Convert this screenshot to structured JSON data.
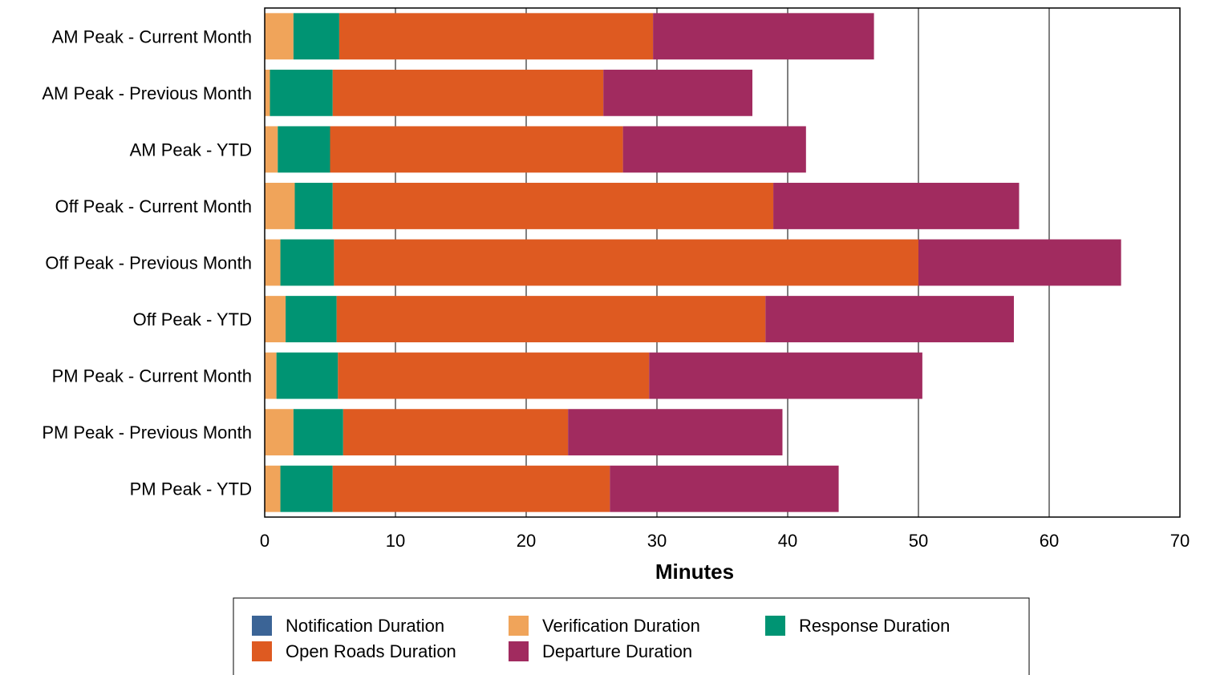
{
  "chart_data": {
    "type": "bar",
    "orientation": "horizontal",
    "stacked": true,
    "title": "",
    "xlabel": "Minutes",
    "ylabel": "",
    "xlim": [
      0,
      70
    ],
    "xticks": [
      0,
      10,
      20,
      30,
      40,
      50,
      60,
      70
    ],
    "grid": "vertical",
    "legend_position": "bottom",
    "categories": [
      "AM Peak - Current Month",
      "AM Peak - Previous Month",
      "AM Peak - YTD",
      "Off Peak - Current Month",
      "Off Peak - Previous Month",
      "Off Peak - YTD",
      "PM Peak - Current Month",
      "PM Peak - Previous Month",
      "PM Peak - YTD"
    ],
    "series": [
      {
        "name": "Notification Duration",
        "color": "#3b6496",
        "values": [
          0,
          0,
          0,
          0,
          0,
          0,
          0,
          0,
          0
        ]
      },
      {
        "name": "Verification Duration",
        "color": "#f0a45a",
        "values": [
          2.2,
          0.4,
          1.0,
          2.3,
          1.2,
          1.6,
          0.9,
          2.2,
          1.2
        ]
      },
      {
        "name": "Response Duration",
        "color": "#009473",
        "values": [
          3.5,
          4.8,
          4.0,
          2.9,
          4.1,
          3.9,
          4.7,
          3.8,
          4.0
        ]
      },
      {
        "name": "Open Roads Duration",
        "color": "#de5a21",
        "values": [
          24.0,
          20.7,
          22.4,
          33.7,
          44.7,
          32.8,
          23.8,
          17.2,
          21.2
        ]
      },
      {
        "name": "Departure Duration",
        "color": "#a12b5f",
        "values": [
          16.9,
          11.4,
          14.0,
          18.8,
          15.5,
          19.0,
          20.9,
          16.4,
          17.5
        ]
      }
    ]
  }
}
